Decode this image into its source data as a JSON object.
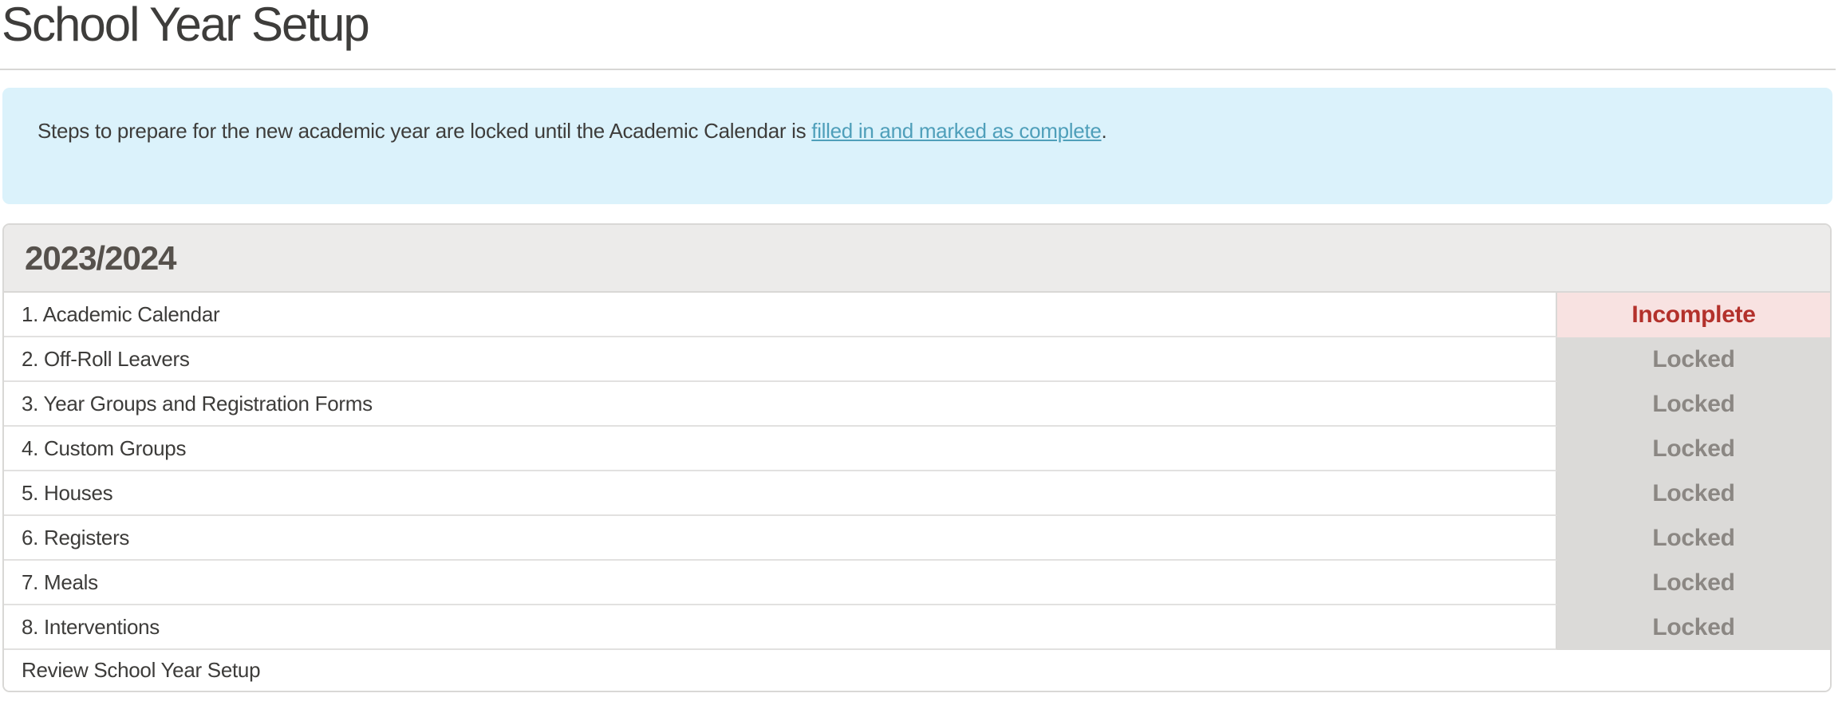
{
  "page": {
    "title": "School Year Setup"
  },
  "banner": {
    "text_before_link": "Steps to prepare for the new academic year are locked until the Academic Calendar is ",
    "link_text": "filled in and marked as complete",
    "text_after_link": "."
  },
  "table": {
    "header": "2023/2024",
    "rows": [
      {
        "label": "1. Academic Calendar",
        "status": "Incomplete",
        "status_type": "incomplete"
      },
      {
        "label": "2. Off-Roll Leavers",
        "status": "Locked",
        "status_type": "locked"
      },
      {
        "label": "3. Year Groups and Registration Forms",
        "status": "Locked",
        "status_type": "locked"
      },
      {
        "label": "4. Custom Groups",
        "status": "Locked",
        "status_type": "locked"
      },
      {
        "label": "5. Houses",
        "status": "Locked",
        "status_type": "locked"
      },
      {
        "label": "6. Registers",
        "status": "Locked",
        "status_type": "locked"
      },
      {
        "label": "7. Meals",
        "status": "Locked",
        "status_type": "locked"
      },
      {
        "label": "8. Interventions",
        "status": "Locked",
        "status_type": "locked"
      },
      {
        "label": "Review School Year Setup",
        "status": "",
        "status_type": "none"
      }
    ]
  },
  "colors": {
    "banner_background": "#dbf2fb",
    "link": "#4f9fba",
    "header_background": "#ecebea",
    "incomplete_background": "#f8e2e1",
    "incomplete_text": "#b3312b",
    "locked_background": "#dbdad8",
    "locked_text": "#8b8783",
    "table_border": "#d9d8d6"
  }
}
